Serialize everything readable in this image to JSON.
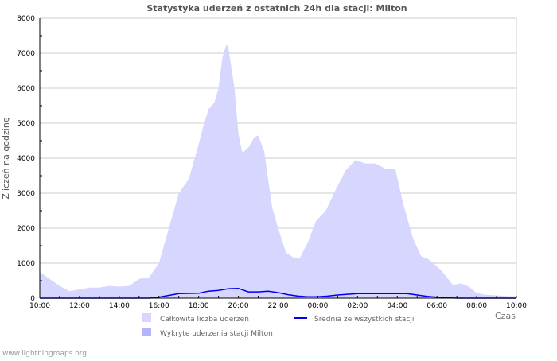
{
  "chart_data": {
    "type": "area",
    "title": "Statystyka uderzeń z ostatnich 24h dla stacji: Milton",
    "xlabel": "Czas",
    "ylabel": "Zliczeń na godzinę",
    "ylim": [
      0,
      8000
    ],
    "yticks": [
      "0",
      "1000",
      "2000",
      "3000",
      "4000",
      "5000",
      "6000",
      "7000",
      "8000"
    ],
    "xticks": [
      "10:00",
      "12:00",
      "14:00",
      "16:00",
      "18:00",
      "20:00",
      "22:00",
      "00:00",
      "02:00",
      "04:00",
      "06:00",
      "08:00",
      "10:00"
    ],
    "x_unit": "hours since 10:00",
    "grid": true,
    "legend_position": "bottom",
    "series": [
      {
        "name": "Całkowita liczba uderzeń",
        "kind": "area",
        "color": "#d6d6ff",
        "x": [
          0,
          0.5,
          1,
          1.5,
          2,
          2.5,
          3,
          3.5,
          4,
          4.5,
          5,
          5.5,
          6,
          6.5,
          7,
          7.5,
          8,
          8.2,
          8.5,
          8.8,
          9,
          9.2,
          9.4,
          9.5,
          9.8,
          10,
          10.2,
          10.5,
          10.8,
          11,
          11.3,
          11.7,
          12,
          12.4,
          12.8,
          13.1,
          13.5,
          13.9,
          14.4,
          14.9,
          15.4,
          15.9,
          16.4,
          16.9,
          17.4,
          17.9,
          18.3,
          18.8,
          19.2,
          19.6,
          20.2,
          20.8,
          21.2,
          21.6,
          22,
          22.4,
          23,
          23.5,
          24
        ],
        "values": [
          750,
          550,
          350,
          200,
          250,
          300,
          300,
          350,
          330,
          350,
          550,
          600,
          1000,
          2000,
          3000,
          3400,
          4400,
          4850,
          5400,
          5600,
          6000,
          6900,
          7250,
          7150,
          6000,
          4700,
          4150,
          4300,
          4600,
          4650,
          4200,
          2600,
          2000,
          1300,
          1150,
          1150,
          1600,
          2200,
          2500,
          3100,
          3650,
          3950,
          3850,
          3850,
          3700,
          3700,
          2700,
          1700,
          1200,
          1100,
          800,
          380,
          420,
          330,
          150,
          100,
          80,
          60,
          50
        ]
      },
      {
        "name": "Średnia ze wszystkich stacji",
        "kind": "line",
        "color": "#0000ee",
        "x": [
          0,
          5.5,
          6,
          6.5,
          7,
          8,
          8.5,
          9,
          9.5,
          10,
          10.5,
          11,
          11.5,
          12,
          12.5,
          13,
          13.5,
          14,
          14.5,
          15,
          16,
          17,
          18,
          18.5,
          19,
          19.5,
          20,
          21,
          24
        ],
        "values": [
          0,
          0,
          30,
          80,
          130,
          140,
          200,
          220,
          270,
          280,
          180,
          180,
          200,
          160,
          100,
          60,
          40,
          40,
          60,
          90,
          130,
          130,
          130,
          130,
          90,
          50,
          30,
          0,
          0
        ]
      },
      {
        "name": "Wykryte uderzenia stacji Milton",
        "kind": "area",
        "color": "#b4b4ff",
        "x": [],
        "values": []
      }
    ]
  },
  "footer": "www.lightningmaps.org"
}
